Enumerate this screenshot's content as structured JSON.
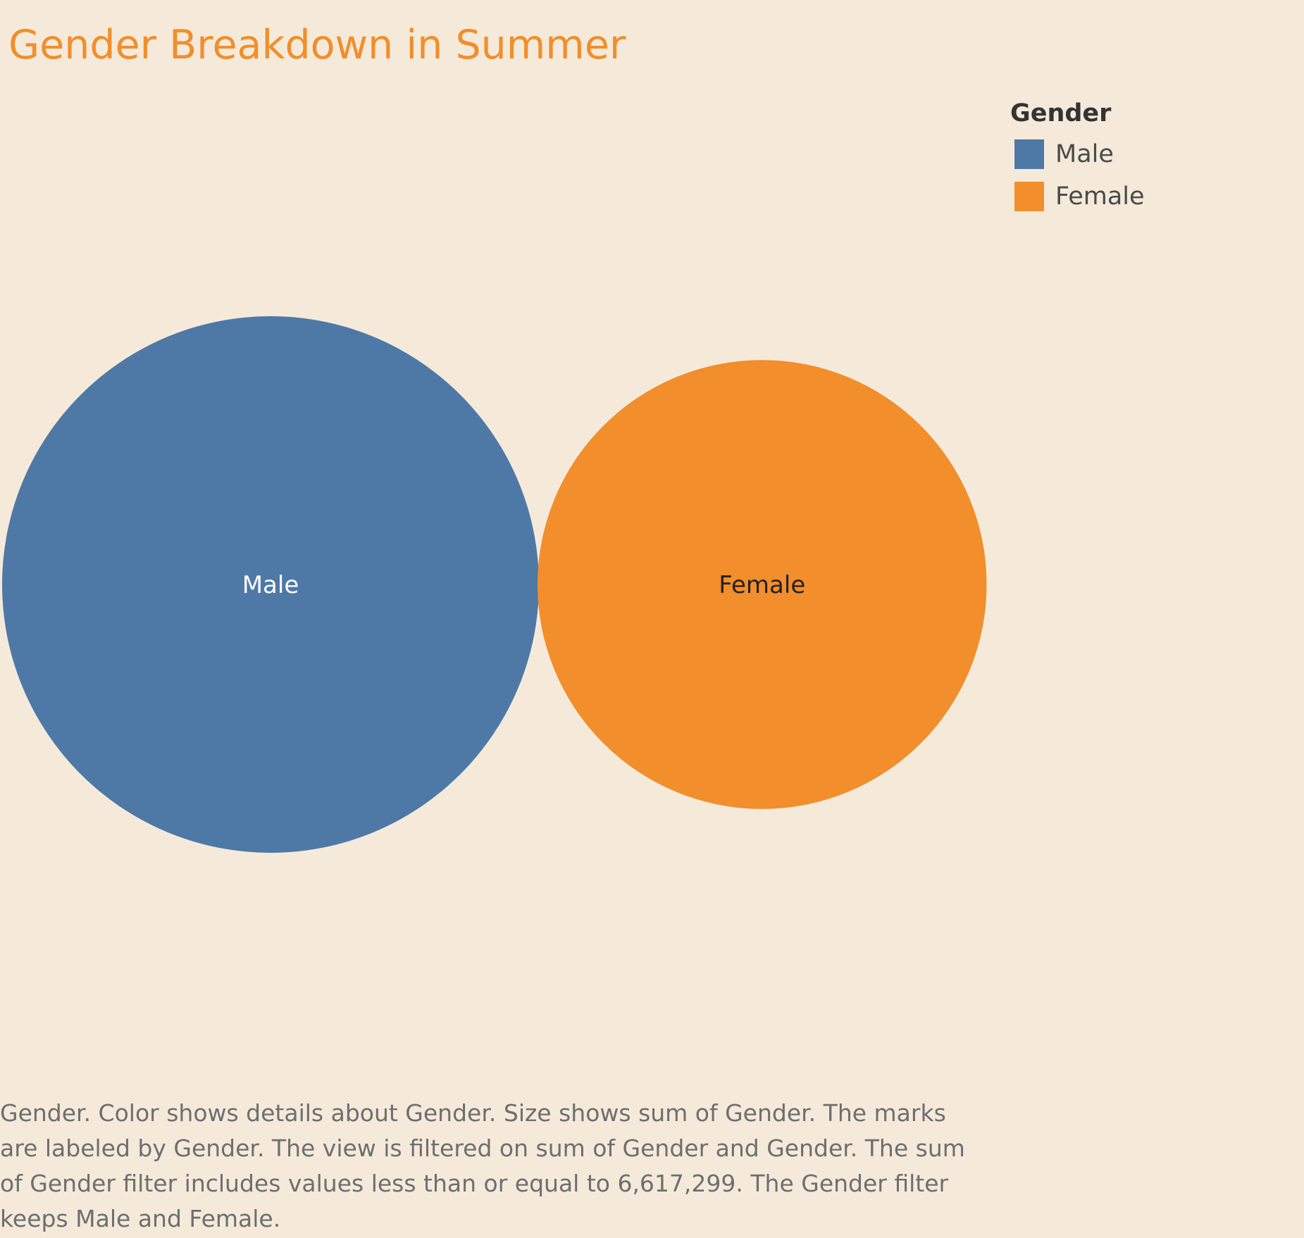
{
  "chart_data": {
    "type": "bubble",
    "title": "Gender Breakdown in Summer",
    "legend": {
      "title": "Gender",
      "placement": "top-right",
      "items": [
        {
          "label": "Male",
          "color": "#4e79a7"
        },
        {
          "label": "Female",
          "color": "#f28e2b"
        }
      ]
    },
    "marks": [
      {
        "label": "Male",
        "relative_size": 1.0,
        "color": "#4e79a7",
        "label_color": "#ffffff"
      },
      {
        "label": "Female",
        "relative_size": 0.7,
        "color": "#f28e2b",
        "label_color": "#222222"
      }
    ]
  },
  "caption": "Gender.  Color shows details about Gender.  Size shows sum of Gender.  The marks are labeled by Gender. The view is filtered on sum of Gender and Gender. The sum of Gender filter includes values less than or equal to 6,617,299. The Gender filter keeps Male and Female.",
  "colors": {
    "background": "#f5eada",
    "title": "#f28e2b"
  }
}
